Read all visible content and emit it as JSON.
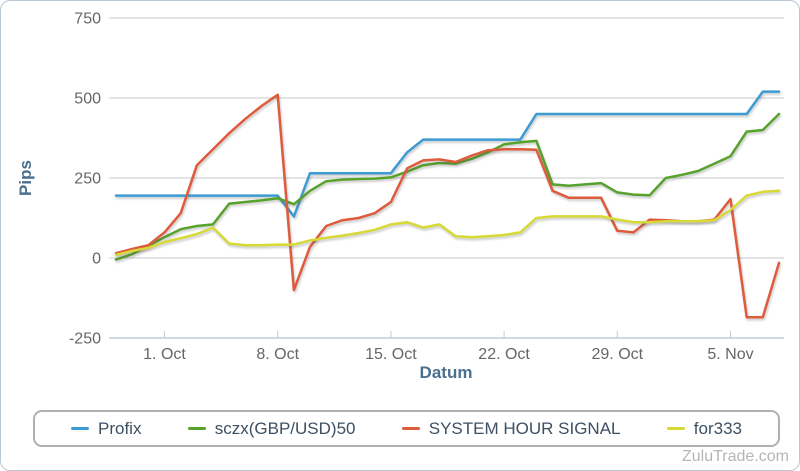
{
  "chart_data": {
    "type": "line",
    "title": "",
    "ylabel": "Pips",
    "xlabel": "Datum",
    "ylim": [
      -250,
      750
    ],
    "y_ticks": [
      750,
      500,
      250,
      0,
      -250
    ],
    "x_tick_labels": [
      "1. Oct",
      "8. Oct",
      "15. Oct",
      "22. Oct",
      "29. Oct",
      "5. Nov"
    ],
    "x_tick_day_indices": [
      3,
      10,
      17,
      24,
      31,
      38
    ],
    "num_points": 42,
    "grid": "horizontal-only",
    "legend_position": "bottom",
    "watermark": "ZuluTrade.com",
    "series": [
      {
        "name": "Profix",
        "color": "#3d9bd4",
        "values": [
          195,
          195,
          195,
          195,
          195,
          195,
          195,
          195,
          195,
          195,
          195,
          130,
          265,
          265,
          265,
          265,
          265,
          265,
          330,
          370,
          370,
          370,
          370,
          370,
          370,
          370,
          450,
          450,
          450,
          450,
          450,
          450,
          450,
          450,
          450,
          450,
          450,
          450,
          450,
          450,
          520,
          520
        ]
      },
      {
        "name": "sczx(GBP/USD)50",
        "color": "#57a12d",
        "values": [
          -5,
          12,
          38,
          65,
          90,
          100,
          105,
          170,
          175,
          180,
          187,
          168,
          210,
          240,
          245,
          247,
          248,
          252,
          270,
          290,
          297,
          295,
          310,
          330,
          355,
          362,
          366,
          230,
          226,
          230,
          234,
          205,
          198,
          196,
          250,
          260,
          272,
          295,
          318,
          395,
          400,
          450
        ]
      },
      {
        "name": "SYSTEM HOUR SIGNAL",
        "color": "#de5b3c",
        "values": [
          15,
          28,
          40,
          80,
          140,
          290,
          340,
          390,
          435,
          475,
          510,
          -100,
          35,
          100,
          118,
          125,
          140,
          175,
          280,
          305,
          308,
          300,
          320,
          337,
          340,
          340,
          338,
          210,
          188,
          188,
          188,
          85,
          80,
          120,
          118,
          115,
          115,
          120,
          184,
          -185,
          -185,
          -15
        ]
      },
      {
        "name": "for333",
        "color": "#d7d936",
        "values": [
          10,
          22,
          32,
          50,
          62,
          75,
          95,
          45,
          40,
          40,
          42,
          42,
          55,
          63,
          70,
          78,
          88,
          105,
          112,
          95,
          105,
          68,
          65,
          68,
          72,
          80,
          125,
          130,
          130,
          130,
          130,
          120,
          112,
          112,
          115,
          115,
          115,
          118,
          150,
          195,
          207,
          210
        ]
      }
    ]
  },
  "colors": {
    "background": "#ffffff",
    "widget_border": "#b9c7d5",
    "grid": "#c9c9c9",
    "axis_line": "#c0ccd8",
    "axis_label": "#666666",
    "axis_title": "#4a708f",
    "legend_border": "#b0b0b0",
    "legend_text": "#3d4f63",
    "watermark": "#b5b5b5"
  }
}
